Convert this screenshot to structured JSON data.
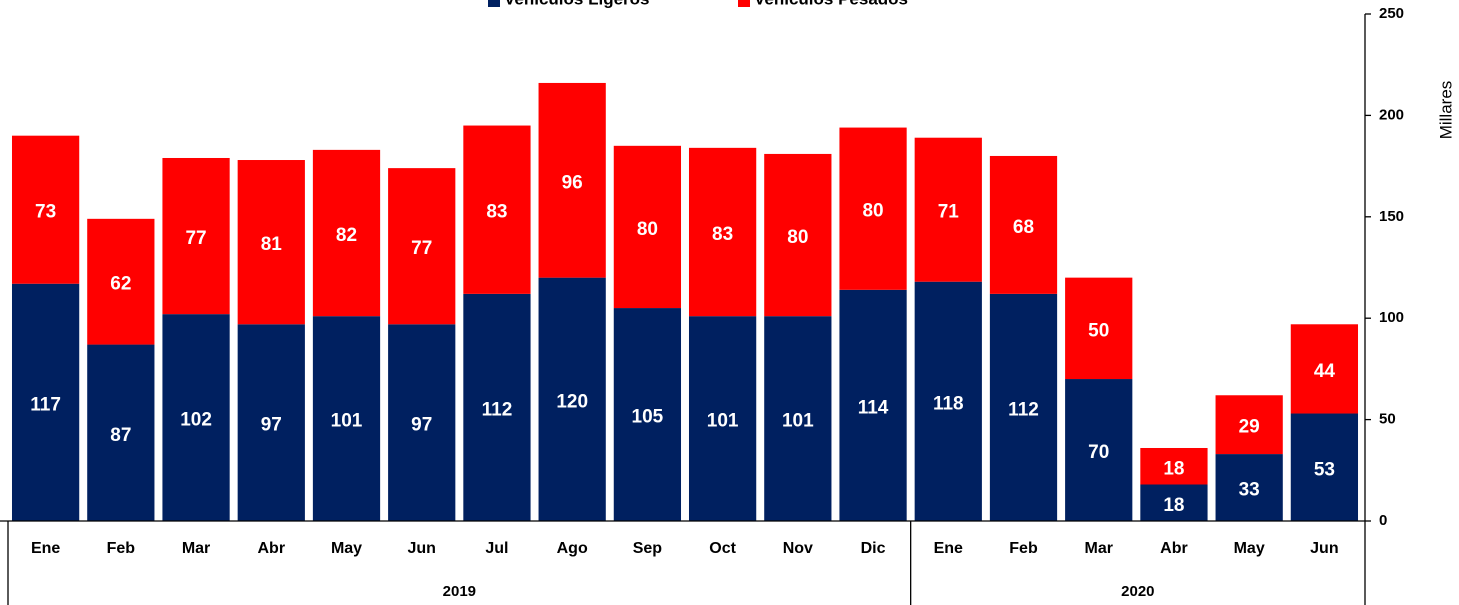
{
  "chart_data": {
    "type": "stacked_bar",
    "groups": [
      {
        "label": "2019",
        "categories": [
          "Ene",
          "Feb",
          "Mar",
          "Abr",
          "May",
          "Jun",
          "Jul",
          "Ago",
          "Sep",
          "Oct",
          "Nov",
          "Dic"
        ]
      },
      {
        "label": "2020",
        "categories": [
          "Ene",
          "Feb",
          "Mar",
          "Abr",
          "May",
          "Jun"
        ]
      }
    ],
    "series": [
      {
        "name": "Vehículos Ligeros",
        "color": "#002060",
        "values": [
          117,
          87,
          102,
          97,
          101,
          97,
          112,
          120,
          105,
          101,
          101,
          114,
          118,
          112,
          70,
          18,
          33,
          53
        ]
      },
      {
        "name": "Vehículos Pesados",
        "color": "#ff0000",
        "values": [
          73,
          62,
          77,
          81,
          82,
          77,
          83,
          96,
          80,
          83,
          80,
          80,
          71,
          68,
          50,
          18,
          29,
          44
        ]
      }
    ],
    "y_label": "Millares",
    "ylim": [
      0,
      250
    ],
    "yticks": [
      0,
      50,
      100,
      150,
      200,
      250
    ],
    "y_axis_side": "right",
    "legend": "top"
  }
}
